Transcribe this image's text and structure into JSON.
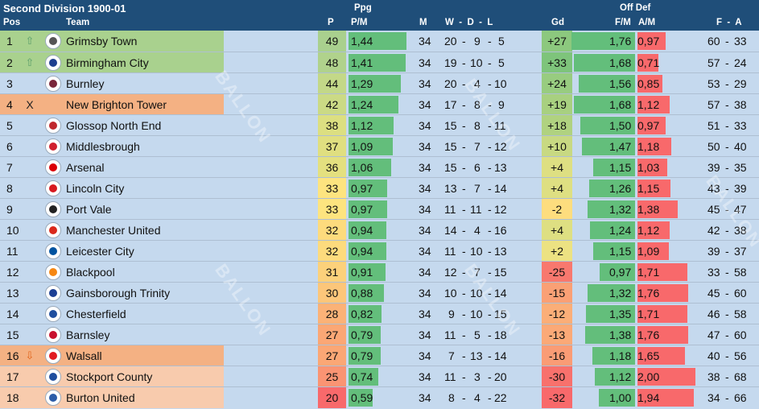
{
  "title": "Second Division 1900-01",
  "columns": {
    "pos": "Pos",
    "team": "Team",
    "p": "P",
    "ppg_group": "Ppg",
    "pm": "P/M",
    "m": "M",
    "wdl": "W  -  D  -  L",
    "gd": "Gd",
    "offdef_group": "Off Def",
    "fm": "F/M",
    "am": "A/M",
    "fa": "F  -  A"
  },
  "watermark": "BALLON",
  "colors": {
    "promoted": "#a9d18e",
    "relegated_candidate": "#f4b183",
    "relegated": "#f8cbad",
    "bar_green": "#63be7b",
    "bar_red": "#f8696b"
  },
  "rows": [
    {
      "pos": "1",
      "mark": "up",
      "mark_text": "⇧",
      "logo": "grimsby-town-crest-icon",
      "team": "Grimsby Town",
      "p": "49",
      "pm": "1,44",
      "pm_v": 1.44,
      "m": "34",
      "w": "20",
      "d": "9",
      "l": "5",
      "gd": "+27",
      "fm": "1,76",
      "fm_v": 1.76,
      "am": "0,97",
      "am_v": 0.97,
      "f": "60",
      "a": "33",
      "band": "promoted",
      "p_color": "#a9d08e",
      "gd_color": "#8cc87e",
      "logo_color": "#555555"
    },
    {
      "pos": "2",
      "mark": "up",
      "mark_text": "⇧",
      "logo": "birmingham-city-crest-icon",
      "team": "Birmingham City",
      "p": "48",
      "pm": "1,41",
      "pm_v": 1.41,
      "m": "34",
      "w": "19",
      "d": "10",
      "l": "5",
      "gd": "+33",
      "fm": "1,68",
      "fm_v": 1.68,
      "am": "0,71",
      "am_v": 0.71,
      "f": "57",
      "a": "24",
      "band": "promoted",
      "p_color": "#b0d28c",
      "gd_color": "#7ec47b",
      "logo_color": "#1d3f8f"
    },
    {
      "pos": "3",
      "mark": "",
      "mark_text": "",
      "logo": "burnley-crest-icon",
      "team": "Burnley",
      "p": "44",
      "pm": "1,29",
      "pm_v": 1.29,
      "m": "34",
      "w": "20",
      "d": "4",
      "l": "10",
      "gd": "+24",
      "fm": "1,56",
      "fm_v": 1.56,
      "am": "0,85",
      "am_v": 0.85,
      "f": "53",
      "a": "29",
      "band": "",
      "p_color": "#c3d888",
      "gd_color": "#98cc80",
      "logo_color": "#7a263a"
    },
    {
      "pos": "4",
      "mark": "x",
      "mark_text": "X",
      "logo": "",
      "team": "New Brighton Tower",
      "p": "42",
      "pm": "1,24",
      "pm_v": 1.24,
      "m": "34",
      "w": "17",
      "d": "8",
      "l": "9",
      "gd": "+19",
      "fm": "1,68",
      "fm_v": 1.68,
      "am": "1,12",
      "am_v": 1.12,
      "f": "57",
      "a": "38",
      "band": "relegated_candidate",
      "p_color": "#cbda85",
      "gd_color": "#a8d080",
      "logo_color": ""
    },
    {
      "pos": "5",
      "mark": "",
      "mark_text": "",
      "logo": "glossop-north-end-crest-icon",
      "team": "Glossop North End",
      "p": "38",
      "pm": "1,12",
      "pm_v": 1.12,
      "m": "34",
      "w": "15",
      "d": "8",
      "l": "11",
      "gd": "+18",
      "fm": "1,50",
      "fm_v": 1.5,
      "am": "0,97",
      "am_v": 0.97,
      "f": "51",
      "a": "33",
      "band": "",
      "p_color": "#dcdf81",
      "gd_color": "#b0d280",
      "logo_color": "#c0282d"
    },
    {
      "pos": "6",
      "mark": "",
      "mark_text": "",
      "logo": "middlesbrough-crest-icon",
      "team": "Middlesbrough",
      "p": "37",
      "pm": "1,09",
      "pm_v": 1.09,
      "m": "34",
      "w": "15",
      "d": "7",
      "l": "12",
      "gd": "+10",
      "fm": "1,47",
      "fm_v": 1.47,
      "am": "1,18",
      "am_v": 1.18,
      "f": "50",
      "a": "40",
      "band": "",
      "p_color": "#e0df80",
      "gd_color": "#c8d982",
      "logo_color": "#d0202e"
    },
    {
      "pos": "7",
      "mark": "",
      "mark_text": "",
      "logo": "arsenal-crest-icon",
      "team": "Arsenal",
      "p": "36",
      "pm": "1,06",
      "pm_v": 1.06,
      "m": "34",
      "w": "15",
      "d": "6",
      "l": "13",
      "gd": "+4",
      "fm": "1,15",
      "fm_v": 1.15,
      "am": "1,03",
      "am_v": 1.03,
      "f": "39",
      "a": "35",
      "band": "",
      "p_color": "#e4e07f",
      "gd_color": "#dedf82",
      "logo_color": "#db0007"
    },
    {
      "pos": "8",
      "mark": "",
      "mark_text": "",
      "logo": "lincoln-city-crest-icon",
      "team": "Lincoln City",
      "p": "33",
      "pm": "0,97",
      "pm_v": 0.97,
      "m": "34",
      "w": "13",
      "d": "7",
      "l": "14",
      "gd": "+4",
      "fm": "1,26",
      "fm_v": 1.26,
      "am": "1,15",
      "am_v": 1.15,
      "f": "43",
      "a": "39",
      "band": "",
      "p_color": "#fde47f",
      "gd_color": "#dedf82",
      "logo_color": "#d71920"
    },
    {
      "pos": "9",
      "mark": "",
      "mark_text": "",
      "logo": "port-vale-crest-icon",
      "team": "Port Vale",
      "p": "33",
      "pm": "0,97",
      "pm_v": 0.97,
      "m": "34",
      "w": "11",
      "d": "11",
      "l": "12",
      "gd": "-2",
      "fm": "1,32",
      "fm_v": 1.32,
      "am": "1,38",
      "am_v": 1.38,
      "f": "45",
      "a": "47",
      "band": "",
      "p_color": "#fde47f",
      "gd_color": "#fddd7e",
      "logo_color": "#222222"
    },
    {
      "pos": "10",
      "mark": "",
      "mark_text": "",
      "logo": "manchester-united-crest-icon",
      "team": "Manchester United",
      "p": "32",
      "pm": "0,94",
      "pm_v": 0.94,
      "m": "34",
      "w": "14",
      "d": "4",
      "l": "16",
      "gd": "+4",
      "fm": "1,24",
      "fm_v": 1.24,
      "am": "1,12",
      "am_v": 1.12,
      "f": "42",
      "a": "38",
      "band": "",
      "p_color": "#fddb7d",
      "gd_color": "#dedf82",
      "logo_color": "#da291c"
    },
    {
      "pos": "11",
      "mark": "",
      "mark_text": "",
      "logo": "leicester-city-crest-icon",
      "team": "Leicester City",
      "p": "32",
      "pm": "0,94",
      "pm_v": 0.94,
      "m": "34",
      "w": "11",
      "d": "10",
      "l": "13",
      "gd": "+2",
      "fm": "1,15",
      "fm_v": 1.15,
      "am": "1,09",
      "am_v": 1.09,
      "f": "39",
      "a": "37",
      "band": "",
      "p_color": "#fddb7d",
      "gd_color": "#ece282",
      "logo_color": "#0053a0"
    },
    {
      "pos": "12",
      "mark": "",
      "mark_text": "",
      "logo": "blackpool-crest-icon",
      "team": "Blackpool",
      "p": "31",
      "pm": "0,91",
      "pm_v": 0.91,
      "m": "34",
      "w": "12",
      "d": "7",
      "l": "15",
      "gd": "-25",
      "fm": "0,97",
      "fm_v": 0.97,
      "am": "1,71",
      "am_v": 1.71,
      "f": "33",
      "a": "58",
      "band": "",
      "p_color": "#fcd17b",
      "gd_color": "#f8786e",
      "logo_color": "#f68712"
    },
    {
      "pos": "13",
      "mark": "",
      "mark_text": "",
      "logo": "gainsborough-trinity-crest-icon",
      "team": "Gainsborough Trinity",
      "p": "30",
      "pm": "0,88",
      "pm_v": 0.88,
      "m": "34",
      "w": "10",
      "d": "10",
      "l": "14",
      "gd": "-15",
      "fm": "1,32",
      "fm_v": 1.32,
      "am": "1,76",
      "am_v": 1.76,
      "f": "45",
      "a": "60",
      "band": "",
      "p_color": "#fcc67a",
      "gd_color": "#faa075",
      "logo_color": "#1c3f94"
    },
    {
      "pos": "14",
      "mark": "",
      "mark_text": "",
      "logo": "chesterfield-crest-icon",
      "team": "Chesterfield",
      "p": "28",
      "pm": "0,82",
      "pm_v": 0.82,
      "m": "34",
      "w": "9",
      "d": "10",
      "l": "15",
      "gd": "-12",
      "fm": "1,35",
      "fm_v": 1.35,
      "am": "1,71",
      "am_v": 1.71,
      "f": "46",
      "a": "58",
      "band": "",
      "p_color": "#fbb277",
      "gd_color": "#fbae78",
      "logo_color": "#1f4e9e"
    },
    {
      "pos": "15",
      "mark": "",
      "mark_text": "",
      "logo": "barnsley-crest-icon",
      "team": "Barnsley",
      "p": "27",
      "pm": "0,79",
      "pm_v": 0.79,
      "m": "34",
      "w": "11",
      "d": "5",
      "l": "18",
      "gd": "-13",
      "fm": "1,38",
      "fm_v": 1.38,
      "am": "1,76",
      "am_v": 1.76,
      "f": "47",
      "a": "60",
      "band": "",
      "p_color": "#fba775",
      "gd_color": "#fba977",
      "logo_color": "#c8102e"
    },
    {
      "pos": "16",
      "mark": "down",
      "mark_text": "⇩",
      "logo": "walsall-crest-icon",
      "team": "Walsall",
      "p": "27",
      "pm": "0,79",
      "pm_v": 0.79,
      "m": "34",
      "w": "7",
      "d": "13",
      "l": "14",
      "gd": "-16",
      "fm": "1,18",
      "fm_v": 1.18,
      "am": "1,65",
      "am_v": 1.65,
      "f": "40",
      "a": "56",
      "band": "relegated_candidate",
      "p_color": "#fba775",
      "gd_color": "#fa9c75",
      "logo_color": "#e11b22"
    },
    {
      "pos": "17",
      "mark": "",
      "mark_text": "",
      "logo": "stockport-county-crest-icon",
      "team": "Stockport County",
      "p": "25",
      "pm": "0,74",
      "pm_v": 0.74,
      "m": "34",
      "w": "11",
      "d": "3",
      "l": "20",
      "gd": "-30",
      "fm": "1,12",
      "fm_v": 1.12,
      "am": "2,00",
      "am_v": 2.0,
      "f": "38",
      "a": "68",
      "band": "relegated",
      "p_color": "#fa9473",
      "gd_color": "#f8716c",
      "logo_color": "#1f4e9e"
    },
    {
      "pos": "18",
      "mark": "",
      "mark_text": "",
      "logo": "burton-united-crest-icon",
      "team": "Burton United",
      "p": "20",
      "pm": "0,59",
      "pm_v": 0.59,
      "m": "34",
      "w": "8",
      "d": "4",
      "l": "22",
      "gd": "-32",
      "fm": "1,00",
      "fm_v": 1.0,
      "am": "1,94",
      "am_v": 1.94,
      "f": "34",
      "a": "66",
      "band": "relegated",
      "p_color": "#f8696b",
      "gd_color": "#f8696b",
      "logo_color": "#2b5ca8"
    }
  ]
}
